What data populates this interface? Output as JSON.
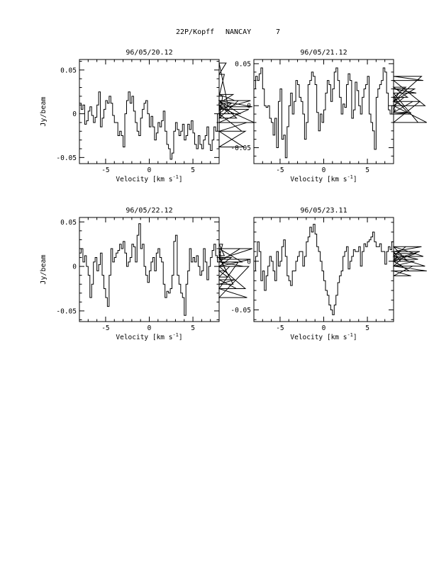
{
  "page": {
    "header": {
      "object": "22P/Kopff",
      "station": "NANCAY",
      "number": "7"
    }
  },
  "chart_data": [
    {
      "type": "line",
      "step": true,
      "title": "96/05/20.12",
      "xlabel": "Velocity [km s",
      "xlabel_sup": "-1",
      "xlabel_end": "]",
      "ylabel": "Jy/beam",
      "xlim": [
        -8,
        8
      ],
      "ylim": [
        -0.057,
        0.062
      ],
      "xticks": [
        -5,
        0,
        5
      ],
      "yticks": [
        -0.05,
        0,
        0.05
      ],
      "yticklabels": [
        "-0.05",
        "0",
        "0.05"
      ],
      "x_start": -7.9,
      "x_step": 0.2,
      "y": [
        0.012,
        0.005,
        0.01,
        -0.012,
        -0.008,
        0.003,
        0.008,
        -0.002,
        -0.01,
        -0.004,
        0.01,
        0.025,
        -0.015,
        -0.005,
        0.005,
        0.015,
        0.012,
        0.02,
        0.012,
        -0.002,
        -0.01,
        -0.01,
        -0.025,
        -0.02,
        -0.025,
        -0.038,
        0.0,
        0.015,
        0.025,
        0.012,
        0.02,
        0.003,
        -0.01,
        -0.02,
        -0.025,
        -0.005,
        0.005,
        0.012,
        0.015,
        0.0,
        -0.015,
        -0.003,
        -0.015,
        -0.03,
        -0.022,
        -0.01,
        -0.015,
        -0.008,
        0.003,
        -0.02,
        -0.035,
        -0.04,
        -0.052,
        -0.045,
        -0.02,
        -0.01,
        -0.018,
        -0.025,
        -0.02,
        -0.012,
        -0.03,
        -0.025,
        -0.012,
        -0.018,
        -0.008,
        -0.022,
        -0.035,
        -0.04,
        -0.025,
        -0.035,
        -0.04,
        -0.03,
        -0.025,
        -0.015,
        -0.035,
        -0.042,
        -0.03,
        -0.015,
        -0.02,
        0.0,
        0.012,
        -0.005,
        0.02,
        0.045,
        0.058,
        0.01,
        0.0,
        0.012,
        0.022,
        0.015,
        -0.005,
        0.015,
        0.0,
        -0.02,
        -0.038,
        -0.02,
        -0.01,
        0.005,
        0.015,
        0.008,
        -0.01
      ]
    },
    {
      "type": "line",
      "step": true,
      "title": "96/05/21.12",
      "xlabel": "Velocity [km s",
      "xlabel_sup": "-1",
      "xlabel_end": "]",
      "ylabel": "",
      "xlim": [
        -8,
        8
      ],
      "ylim": [
        -0.069,
        0.055
      ],
      "xticks": [
        -5,
        0,
        5
      ],
      "yticks": [
        -0.05,
        0,
        0.05
      ],
      "yticklabels": [
        "-0.05",
        "0",
        "0.05"
      ],
      "x_start": -7.9,
      "x_step": 0.2,
      "y": [
        0.02,
        0.035,
        0.03,
        0.038,
        0.045,
        0.02,
        0.0,
        -0.002,
        0.0,
        -0.015,
        -0.02,
        -0.035,
        -0.015,
        -0.05,
        0.005,
        0.02,
        -0.04,
        -0.035,
        -0.062,
        -0.025,
        0.0,
        0.015,
        -0.01,
        0.005,
        0.03,
        0.025,
        0.01,
        0.005,
        -0.01,
        -0.04,
        -0.02,
        0.025,
        0.03,
        0.04,
        0.035,
        0.025,
        -0.008,
        -0.03,
        -0.01,
        -0.02,
        -0.005,
        0.015,
        0.03,
        0.025,
        0.005,
        0.02,
        0.04,
        0.045,
        0.03,
        0.01,
        -0.01,
        0.002,
        -0.002,
        0.025,
        0.038,
        0.03,
        -0.015,
        -0.005,
        0.028,
        0.018,
        0.0,
        -0.01,
        0.01,
        0.02,
        0.025,
        0.035,
        -0.01,
        -0.02,
        -0.03,
        -0.052,
        0.01,
        0.02,
        0.025,
        0.03,
        0.045,
        0.04,
        0.015,
        -0.005,
        -0.01,
        0.0,
        -0.008,
        -0.005,
        0.005,
        0.015,
        0.005,
        0.0,
        0.01,
        0.022,
        0.01,
        -0.01,
        -0.008,
        0.005,
        0.02,
        0.015,
        -0.02,
        0.005,
        0.035,
        0.03,
        0.0,
        -0.02
      ]
    },
    {
      "type": "line",
      "step": true,
      "title": "96/05/22.12",
      "xlabel": "Velocity [km s",
      "xlabel_sup": "-1",
      "xlabel_end": "]",
      "ylabel": "Jy/beam",
      "xlim": [
        -8,
        8
      ],
      "ylim": [
        -0.062,
        0.055
      ],
      "xticks": [
        -5,
        0,
        5
      ],
      "yticks": [
        -0.05,
        0,
        0.05
      ],
      "yticklabels": [
        "-0.05",
        "0",
        "0.05"
      ],
      "x_start": -7.9,
      "x_step": 0.2,
      "y": [
        0.015,
        0.02,
        0.005,
        0.012,
        0.0,
        -0.01,
        -0.035,
        -0.02,
        0.005,
        0.01,
        -0.005,
        0.002,
        0.015,
        -0.01,
        -0.025,
        -0.035,
        -0.045,
        -0.01,
        0.02,
        0.005,
        0.01,
        0.015,
        0.018,
        0.025,
        0.02,
        0.028,
        0.015,
        0.0,
        0.005,
        0.01,
        0.025,
        0.022,
        0.005,
        0.035,
        0.048,
        0.02,
        0.025,
        0.0,
        -0.01,
        -0.018,
        -0.005,
        0.005,
        0.01,
        -0.005,
        0.015,
        0.02,
        0.01,
        0.005,
        -0.02,
        -0.035,
        -0.028,
        -0.03,
        -0.025,
        -0.01,
        0.028,
        0.035,
        -0.01,
        -0.02,
        -0.03,
        -0.035,
        -0.055,
        -0.02,
        -0.005,
        0.02,
        0.005,
        0.01,
        0.005,
        0.012,
        0.0,
        -0.01,
        -0.005,
        0.02,
        0.005,
        -0.015,
        0.0,
        0.01,
        0.018,
        0.025,
        0.012,
        0.005,
        0.02,
        0.01,
        0.025,
        0.012,
        -0.005,
        -0.012,
        0.0,
        0.01,
        -0.02,
        -0.015,
        -0.025,
        0.005,
        0.02,
        0.005,
        0.0,
        -0.025,
        -0.035,
        0.0,
        0.008,
        0.02
      ]
    },
    {
      "type": "line",
      "step": true,
      "title": "96/05/23.11",
      "xlabel": "Velocity [km s",
      "xlabel_sup": "-1",
      "xlabel_end": "]",
      "ylabel": "",
      "xlim": [
        -8,
        8
      ],
      "ylim": [
        -0.062,
        0.045
      ],
      "xticks": [
        -5,
        0,
        5
      ],
      "yticks": [
        -0.05,
        0,
        0.05
      ],
      "yticklabels": [
        "-0.05",
        "",
        ""
      ],
      "extra_yticks": [
        0
      ],
      "extra_yticklabels": [
        "0"
      ],
      "x_start": -7.9,
      "x_step": 0.2,
      "y": [
        -0.01,
        0.005,
        0.02,
        0.01,
        -0.02,
        -0.01,
        -0.03,
        -0.015,
        -0.005,
        0.005,
        0.0,
        -0.01,
        -0.02,
        0.01,
        -0.005,
        0.0,
        0.015,
        0.022,
        0.005,
        -0.015,
        -0.02,
        -0.025,
        -0.01,
        -0.01,
        0.0,
        0.005,
        0.01,
        0.01,
        -0.005,
        0.005,
        0.02,
        0.025,
        0.035,
        0.03,
        0.038,
        0.028,
        0.015,
        0.01,
        0.0,
        -0.01,
        -0.02,
        -0.03,
        -0.035,
        -0.045,
        -0.05,
        -0.055,
        -0.045,
        -0.035,
        -0.022,
        -0.015,
        -0.01,
        0.005,
        0.01,
        0.015,
        -0.008,
        0.0,
        0.005,
        0.012,
        0.01,
        0.01,
        0.015,
        -0.005,
        0.01,
        0.018,
        0.015,
        0.02,
        0.022,
        0.025,
        0.03,
        0.02,
        0.015,
        0.015,
        0.018,
        0.01,
        0.01,
        -0.003,
        0.01,
        0.015,
        0.012,
        0.02,
        0.008,
        0.0,
        0.005,
        0.01,
        0.0,
        -0.005,
        0.005,
        0.015,
        0.0,
        -0.01,
        -0.015,
        -0.005,
        0.0,
        0.008,
        0.002,
        0.01,
        0.015,
        0.005,
        -0.005,
        -0.01
      ]
    }
  ]
}
